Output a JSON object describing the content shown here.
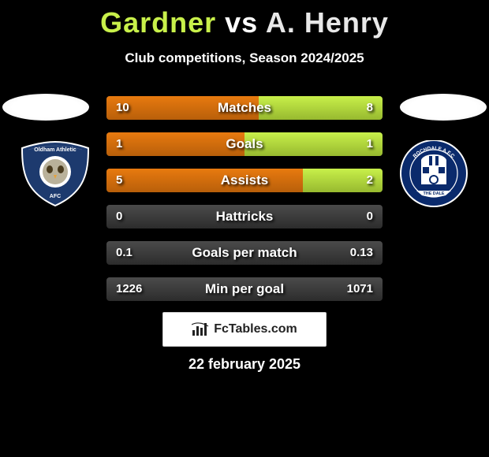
{
  "title": {
    "player_a": "Gardner",
    "vs": "vs",
    "player_b": "A. Henry",
    "color_a": "#c8f04a",
    "color_b": "#e8e8e8",
    "fontsize": 36
  },
  "subtitle": "Club competitions, Season 2024/2025",
  "colors": {
    "left_fill": "#e87a0f",
    "left_fill_dark": "#b85f0a",
    "right_fill": "#c8f04a",
    "right_fill_dark": "#97b92f",
    "bar_bg_top": "#4b4b4b",
    "bar_bg_bottom": "#2c2c2c",
    "background": "#000000"
  },
  "crest_left": {
    "primary": "#1d3a6e",
    "secondary": "#ffffff",
    "accent": "#e08a00",
    "label_top": "Oldham Athletic",
    "label_bottom": "AFC"
  },
  "crest_right": {
    "primary": "#0a2a6c",
    "secondary": "#ffffff",
    "label_top": "ROCHDALE A.F.C",
    "label_bottom": "THE DALE"
  },
  "rows": [
    {
      "label": "Matches",
      "left_val": "10",
      "right_val": "8",
      "left_pct": 55,
      "right_pct": 45
    },
    {
      "label": "Goals",
      "left_val": "1",
      "right_val": "1",
      "left_pct": 50,
      "right_pct": 50
    },
    {
      "label": "Assists",
      "left_val": "5",
      "right_val": "2",
      "left_pct": 71,
      "right_pct": 29
    },
    {
      "label": "Hattricks",
      "left_val": "0",
      "right_val": "0",
      "left_pct": 0,
      "right_pct": 0
    },
    {
      "label": "Goals per match",
      "left_val": "0.1",
      "right_val": "0.13",
      "left_pct": 0,
      "right_pct": 0
    },
    {
      "label": "Min per goal",
      "left_val": "1226",
      "right_val": "1071",
      "left_pct": 0,
      "right_pct": 0
    }
  ],
  "badge": {
    "text": "FcTables.com"
  },
  "date": "22 february 2025"
}
